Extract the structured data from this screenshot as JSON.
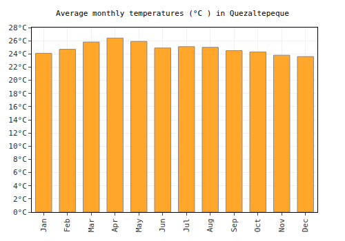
{
  "chart_data": {
    "type": "bar",
    "title": "Average monthly temperatures (°C ) in Quezaltepeque",
    "categories": [
      "Jan",
      "Feb",
      "Mar",
      "Apr",
      "May",
      "Jun",
      "Jul",
      "Aug",
      "Sep",
      "Oct",
      "Nov",
      "Dec"
    ],
    "values": [
      24.1,
      24.7,
      25.8,
      26.4,
      25.9,
      24.9,
      25.1,
      25.0,
      24.5,
      24.3,
      23.8,
      23.6
    ],
    "color": "#ffa62b",
    "ylim": [
      0,
      28
    ],
    "yticks": [
      {
        "value": 0,
        "label": "0°C"
      },
      {
        "value": 2,
        "label": "2°C"
      },
      {
        "value": 4,
        "label": "4°C"
      },
      {
        "value": 6,
        "label": "6°C"
      },
      {
        "value": 8,
        "label": "8°C"
      },
      {
        "value": 10,
        "label": "10°C"
      },
      {
        "value": 12,
        "label": "12°C"
      },
      {
        "value": 14,
        "label": "14°C"
      },
      {
        "value": 16,
        "label": "16°C"
      },
      {
        "value": 18,
        "label": "18°C"
      },
      {
        "value": 20,
        "label": "20°C"
      },
      {
        "value": 22,
        "label": "22°C"
      },
      {
        "value": 24,
        "label": "24°C"
      },
      {
        "value": 26,
        "label": "26°C"
      },
      {
        "value": 28,
        "label": "28°C"
      }
    ],
    "grid": true
  }
}
